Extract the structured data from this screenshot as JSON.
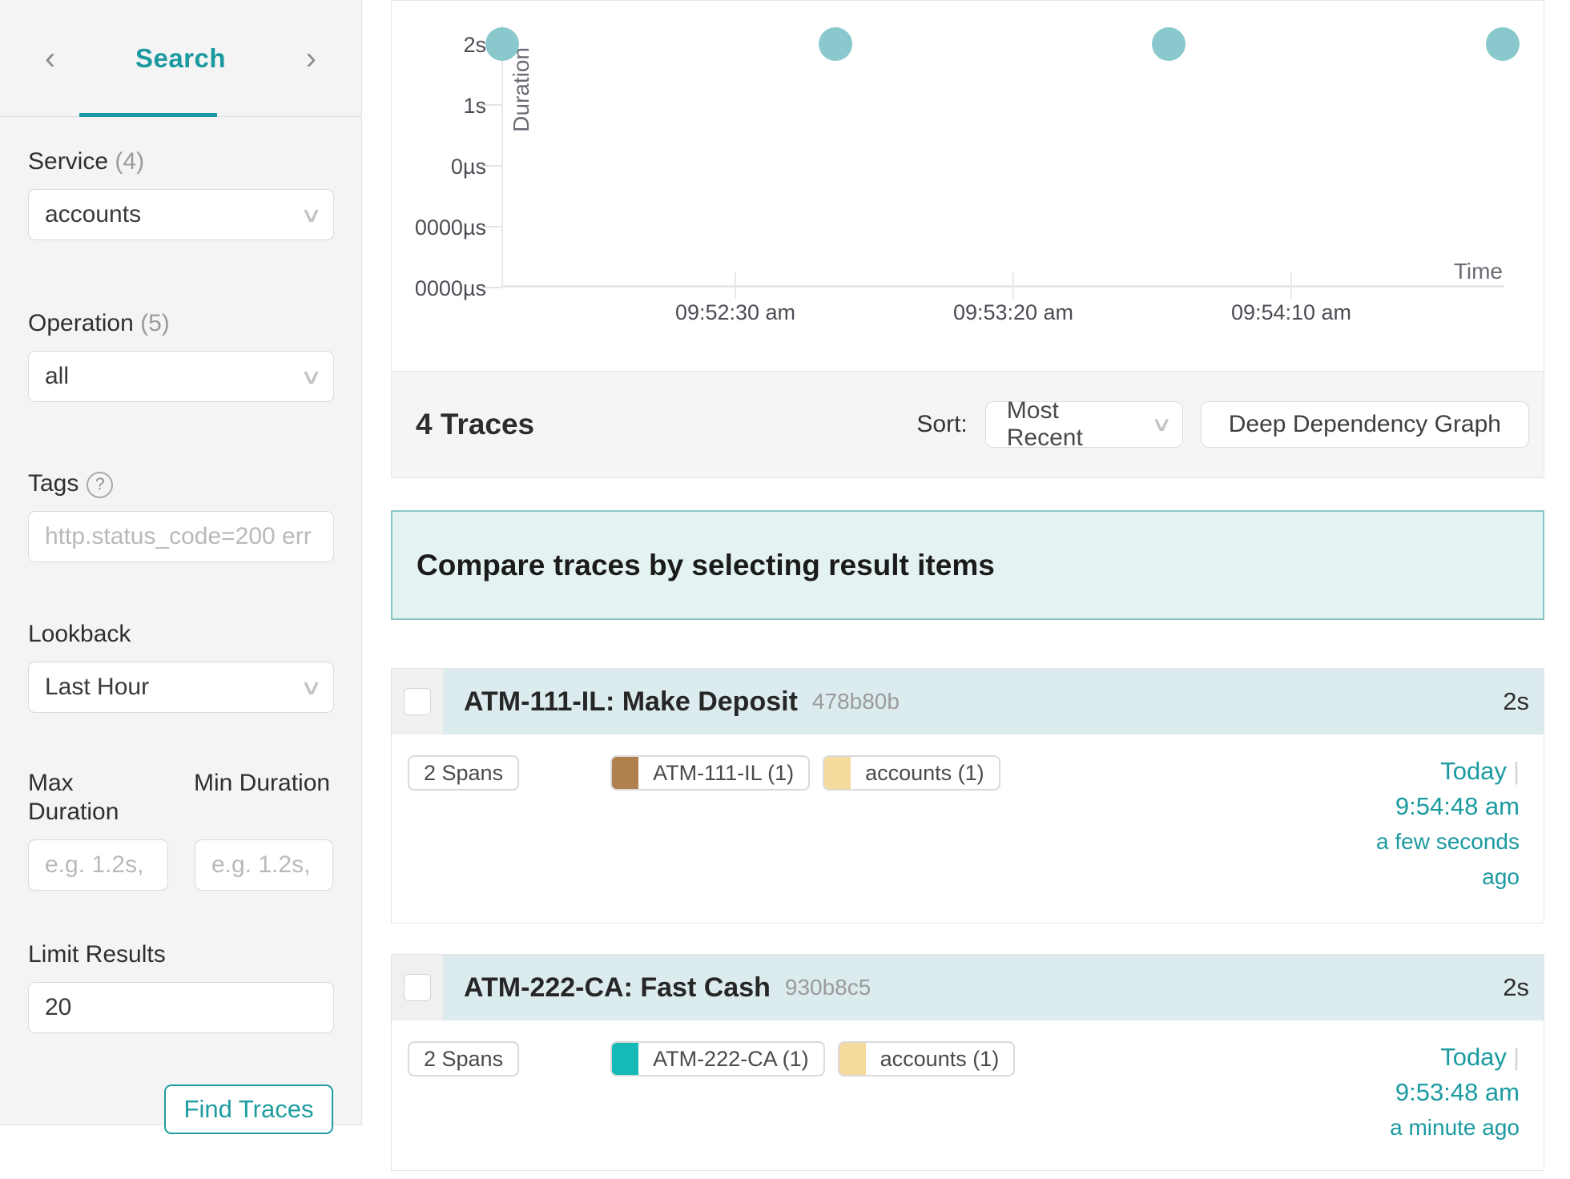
{
  "icons": {
    "chevron_left": "‹",
    "chevron_right": "›",
    "chevron_down": "∨",
    "help": "?"
  },
  "sidebar": {
    "tab_title": "Search",
    "service": {
      "label": "Service",
      "count": "(4)",
      "value": "accounts"
    },
    "operation": {
      "label": "Operation",
      "count": "(5)",
      "value": "all"
    },
    "tags": {
      "label": "Tags",
      "placeholder": "http.status_code=200 err"
    },
    "lookback": {
      "label": "Lookback",
      "value": "Last Hour"
    },
    "max_duration": {
      "label": "Max Duration",
      "placeholder": "e.g. 1.2s,"
    },
    "min_duration": {
      "label": "Min Duration",
      "placeholder": "e.g. 1.2s,"
    },
    "limit": {
      "label": "Limit Results",
      "value": "20"
    },
    "find_button": "Find Traces"
  },
  "chart_data": {
    "type": "scatter",
    "xlabel": "Time",
    "ylabel": "Duration",
    "y_ticks": [
      "2s",
      "1s",
      "0µs",
      "0000µs",
      "0000µs"
    ],
    "x_ticks": [
      "09:52:30 am",
      "09:53:20 am",
      "09:54:10 am"
    ],
    "points": [
      {
        "time": "09:51:48 am",
        "duration": "2s"
      },
      {
        "time": "09:52:48 am",
        "duration": "2s"
      },
      {
        "time": "09:53:48 am",
        "duration": "2s"
      },
      {
        "time": "09:54:48 am",
        "duration": "2s"
      }
    ],
    "point_color": "#7fc4ca",
    "legend": "none",
    "grid": "off"
  },
  "results_bar": {
    "count_label": "4 Traces",
    "sort_label": "Sort:",
    "sort_value": "Most Recent",
    "ddg_button": "Deep Dependency Graph"
  },
  "banner": {
    "text": "Compare traces by selecting result items"
  },
  "traces": [
    {
      "title": "ATM-111-IL: Make Deposit",
      "trace_id": "478b80b",
      "duration": "2s",
      "spans": "2 Spans",
      "services": [
        {
          "name": "ATM-111-IL (1)",
          "color": "#b0814f"
        },
        {
          "name": "accounts (1)",
          "color": "#f6d99c"
        }
      ],
      "date": "Today",
      "separator": "|",
      "time": "9:54:48 am",
      "relative": "a few seconds ago"
    },
    {
      "title": "ATM-222-CA: Fast Cash",
      "trace_id": "930b8c5",
      "duration": "2s",
      "spans": "2 Spans",
      "services": [
        {
          "name": "ATM-222-CA (1)",
          "color": "#15bab6"
        },
        {
          "name": "accounts (1)",
          "color": "#f6d99c"
        }
      ],
      "date": "Today",
      "separator": "|",
      "time": "9:53:48 am",
      "relative": "a minute ago"
    }
  ],
  "colors": {
    "accent": "#1a9aa0",
    "dot": "#7fc4ca",
    "card_header_bg": "#dcebed",
    "banner_bg": "#e4f3f2",
    "banner_border": "#8ac4c6"
  }
}
